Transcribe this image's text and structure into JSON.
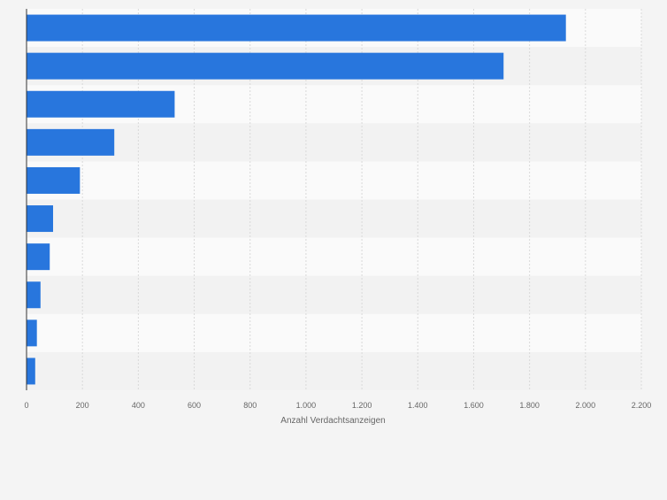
{
  "colors": {
    "background": "#f4f4f4",
    "band_light": "#fafafa",
    "band_dark": "#f2f2f2",
    "gridline": "#d9d9d9",
    "axis": "#333333",
    "bar": "#2876dd",
    "tick_text": "#666666"
  },
  "chart_data": {
    "type": "bar",
    "orientation": "horizontal",
    "categories": [
      "",
      "",
      "",
      "",
      "",
      "",
      "",
      "",
      "",
      ""
    ],
    "values": [
      1930,
      1707,
      530,
      314,
      191,
      95,
      83,
      50,
      37,
      31
    ],
    "xlabel": "Anzahl Verdachtsanzeigen",
    "ylabel": "",
    "xlim": [
      0,
      2200
    ],
    "xticks": [
      0,
      200,
      400,
      600,
      800,
      1000,
      1200,
      1400,
      1600,
      1800,
      2000,
      2200
    ],
    "xtick_labels": [
      "0",
      "200",
      "400",
      "600",
      "800",
      "1.000",
      "1.200",
      "1.400",
      "1.600",
      "1.800",
      "2.000",
      "2.200"
    ],
    "grid": true,
    "legend": "none"
  }
}
